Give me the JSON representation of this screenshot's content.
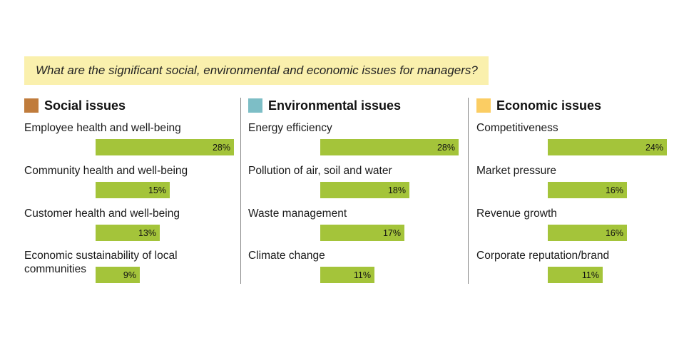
{
  "question": "What are the significant social, environmental and economic issues for managers?",
  "colors": {
    "bar": "#a4c43a",
    "question_bg": "#faf0ad"
  },
  "chart_data": [
    {
      "type": "bar",
      "title": "Social issues",
      "legend_color": "#c07c3c",
      "categories": [
        "Employee health and well-being",
        "Community health and well-being",
        "Customer health and well-being",
        "Economic sustainability of local communities"
      ],
      "label_lines": [
        [
          "Employee health and well-being"
        ],
        [
          "Community health and well-being"
        ],
        [
          "Customer health and well-being"
        ],
        [
          "Economic sustainability of local",
          "communities"
        ]
      ],
      "values": [
        28,
        15,
        13,
        9
      ],
      "value_labels": [
        "28%",
        "15%",
        "13%",
        "9%"
      ]
    },
    {
      "type": "bar",
      "title": "Environmental issues",
      "legend_color": "#7dbec6",
      "categories": [
        "Energy efficiency",
        "Pollution of air, soil and water",
        "Waste management",
        "Climate change"
      ],
      "label_lines": [
        [
          "Energy efficiency"
        ],
        [
          "Pollution of air, soil and water"
        ],
        [
          "Waste management"
        ],
        [
          "Climate change"
        ]
      ],
      "values": [
        28,
        18,
        17,
        11
      ],
      "value_labels": [
        "28%",
        "18%",
        "17%",
        "11%"
      ]
    },
    {
      "type": "bar",
      "title": "Economic issues",
      "legend_color": "#fbcd63",
      "categories": [
        "Competitiveness",
        "Market pressure",
        "Revenue growth",
        "Corporate reputation/brand"
      ],
      "label_lines": [
        [
          "Competitiveness"
        ],
        [
          "Market pressure"
        ],
        [
          "Revenue growth"
        ],
        [
          "Corporate reputation/brand"
        ]
      ],
      "values": [
        24,
        16,
        16,
        11
      ],
      "value_labels": [
        "24%",
        "16%",
        "16%",
        "11%"
      ]
    }
  ]
}
